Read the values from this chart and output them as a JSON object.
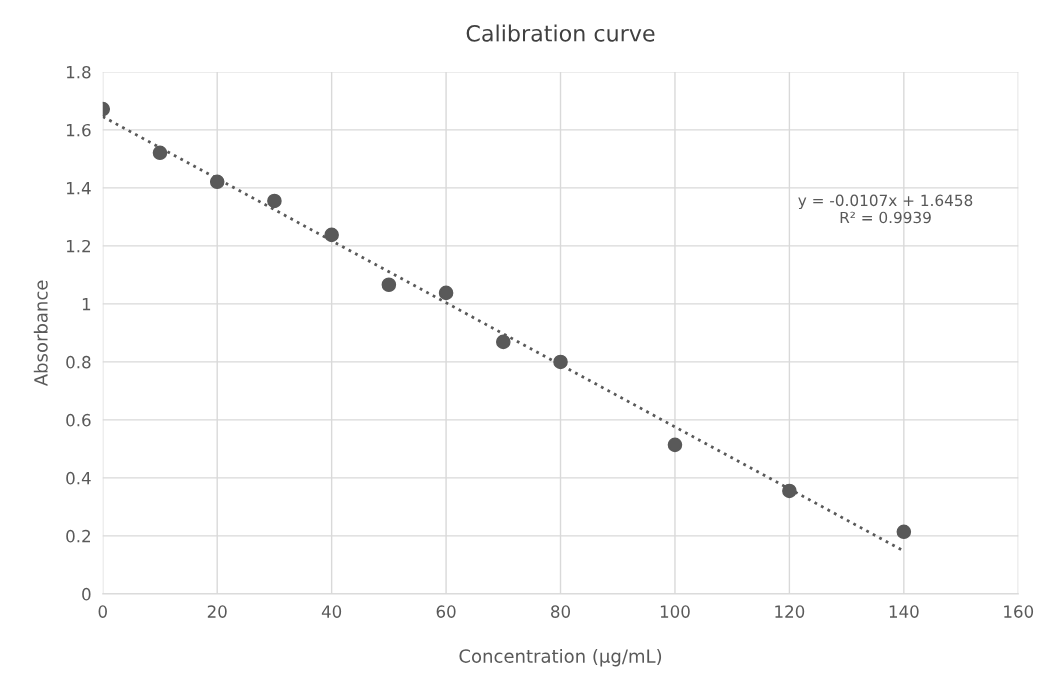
{
  "chart_data": {
    "type": "scatter",
    "title": "Calibration curve",
    "xlabel": "Concentration (µg/mL)",
    "ylabel": "Absorbance",
    "xlim": [
      0,
      160
    ],
    "xticks": [
      0,
      20,
      40,
      60,
      80,
      100,
      120,
      140,
      160
    ],
    "ylim": [
      0,
      1.8
    ],
    "yticks": [
      0,
      {
        "value": 0.2,
        "label": "0.2"
      },
      {
        "value": 0.4,
        "label": "0.4"
      },
      {
        "value": 0.6,
        "label": "0.6"
      },
      {
        "value": 0.8,
        "label": "0.8"
      },
      1,
      {
        "value": 1.2,
        "label": "1.2"
      },
      {
        "value": 1.4,
        "label": "1.4"
      },
      {
        "value": 1.6,
        "label": "1.6"
      },
      {
        "value": 1.8,
        "label": "1.8"
      }
    ],
    "grid": true,
    "marker": "circle",
    "series": [
      {
        "color": "#595959",
        "x": [
          0,
          10,
          20,
          30,
          40,
          50,
          60,
          70,
          80,
          100,
          120,
          140
        ],
        "values": [
          1.672,
          1.521,
          1.421,
          1.355,
          1.238,
          1.066,
          1.038,
          0.869,
          0.8,
          0.514,
          0.355,
          0.214
        ]
      },
      {
        "type": "line",
        "color": "#595959",
        "line_style": "dotted",
        "marker": "none",
        "x": [
          0,
          140
        ],
        "values": [
          1.646,
          0.148
        ]
      }
    ],
    "annotations": [
      "y = -0.0107x + 1.6458\nR² = 0.9939"
    ]
  }
}
